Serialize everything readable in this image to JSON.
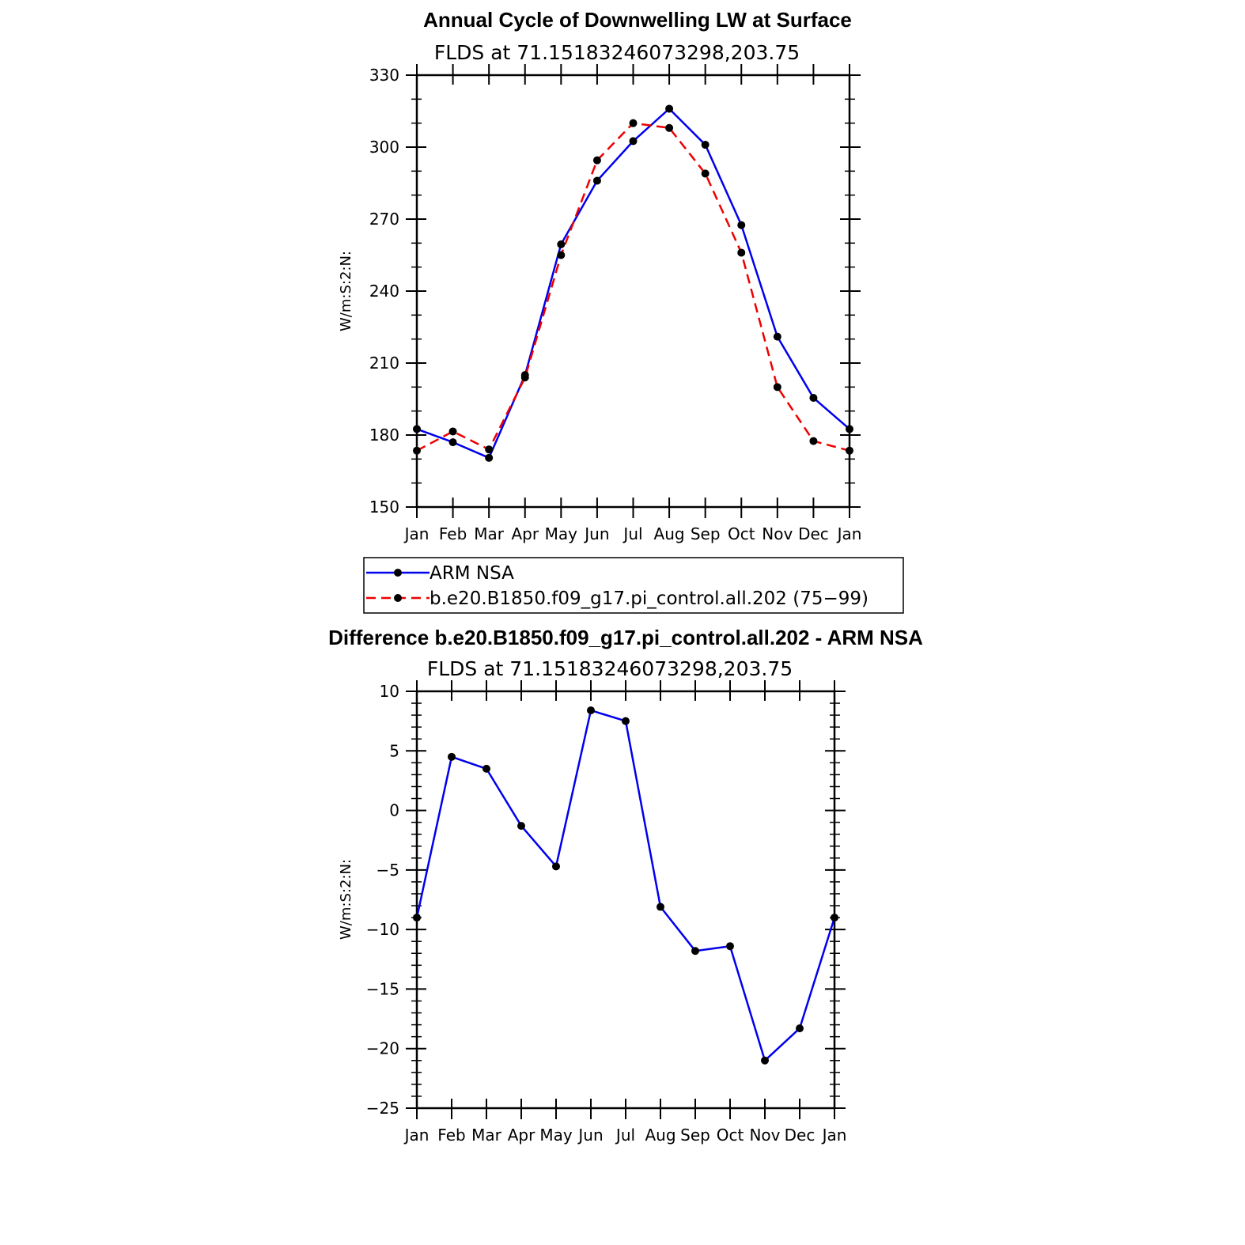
{
  "chart_data": [
    {
      "type": "line",
      "title": "Annual Cycle of Downwelling LW at Surface",
      "subtitle": "FLDS at 71.15183246073298,203.75",
      "xlabel": "",
      "ylabel": "W/m:S:2:N:",
      "categories": [
        "Jan",
        "Feb",
        "Mar",
        "Apr",
        "May",
        "Jun",
        "Jul",
        "Aug",
        "Sep",
        "Oct",
        "Nov",
        "Dec",
        "Jan"
      ],
      "ylim": [
        150,
        330
      ],
      "yticks": [
        "330",
        "300",
        "270",
        "240",
        "210",
        "180",
        "150"
      ],
      "series": [
        {
          "name": "ARM NSA",
          "color": "#0000ee",
          "dash": "solid",
          "values": [
            182.5,
            177.0,
            170.5,
            205.0,
            259.5,
            286.0,
            302.5,
            316.0,
            301.0,
            267.5,
            221.0,
            195.5,
            182.5
          ]
        },
        {
          "name": "b.e20.B1850.f09_g17.pi_control.all.202 (75−99)",
          "color": "#ee0000",
          "dash": "dashed",
          "values": [
            173.5,
            181.5,
            174.0,
            204.0,
            255.0,
            294.5,
            310.0,
            308.0,
            289.0,
            256.0,
            200.0,
            177.5,
            173.5
          ]
        }
      ],
      "legend": "below"
    },
    {
      "type": "line",
      "title": "Difference b.e20.B1850.f09_g17.pi_control.all.202 - ARM NSA",
      "subtitle": "FLDS at 71.15183246073298,203.75",
      "xlabel": "",
      "ylabel": "W/m:S:2:N:",
      "categories": [
        "Jan",
        "Feb",
        "Mar",
        "Apr",
        "May",
        "Jun",
        "Jul",
        "Aug",
        "Sep",
        "Oct",
        "Nov",
        "Dec",
        "Jan"
      ],
      "ylim": [
        -25,
        10
      ],
      "yticks": [
        "10",
        "5",
        "0",
        "−5",
        "−10",
        "−15",
        "−20",
        "−25"
      ],
      "series": [
        {
          "color": "#0000ee",
          "dash": "solid",
          "values": [
            -9.0,
            4.5,
            3.5,
            -1.3,
            -4.7,
            8.4,
            7.5,
            -8.1,
            -11.8,
            -11.4,
            -21.0,
            -18.3,
            -9.0
          ]
        }
      ]
    }
  ]
}
